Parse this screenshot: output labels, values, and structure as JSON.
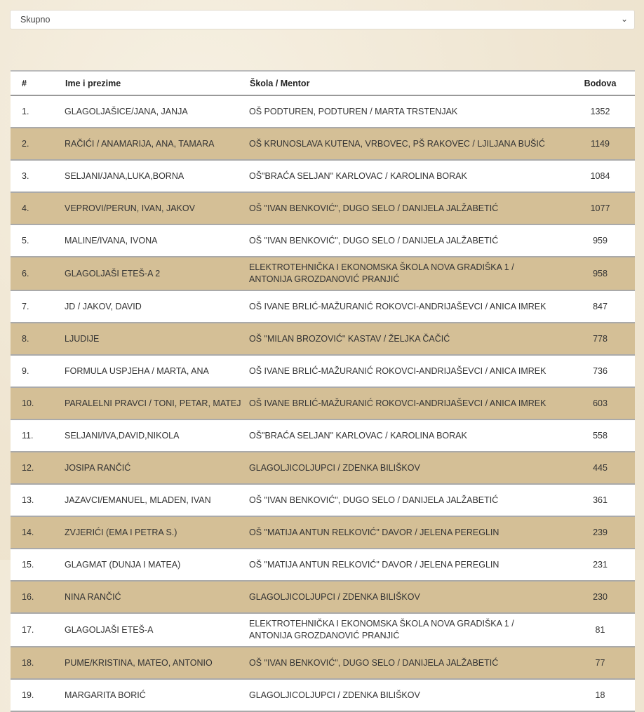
{
  "filter": {
    "selected": "Skupno",
    "icon": "chevron-down-icon"
  },
  "table": {
    "headers": [
      "#",
      "Ime i prezime",
      "Škola / Mentor",
      "Bodova"
    ],
    "rows": [
      {
        "rank": "1.",
        "name": "GLAGOLJAŠICE/JANA, JANJA",
        "school": "OŠ PODTUREN, PODTUREN / MARTA TRSTENJAK",
        "points": "1352"
      },
      {
        "rank": "2.",
        "name": "RAČIĆI / ANAMARIJA, ANA, TAMARA",
        "school": "OŠ KRUNOSLAVA KUTENA, VRBOVEC, PŠ RAKOVEC / LJILJANA BUŠIĆ",
        "points": "1149"
      },
      {
        "rank": "3.",
        "name": "SELJANI/JANA,LUKA,BORNA",
        "school": "OŠ\"BRAĆA SELJAN\" KARLOVAC / KAROLINA BORAK",
        "points": "1084"
      },
      {
        "rank": "4.",
        "name": "VEPROVI/PERUN, IVAN, JAKOV",
        "school": "OŠ \"IVAN BENKOVIĆ\", DUGO SELO / DANIJELA JALŽABETIĆ",
        "points": "1077"
      },
      {
        "rank": "5.",
        "name": "MALINE/IVANA, IVONA",
        "school": "OŠ \"IVAN BENKOVIĆ\", DUGO SELO / DANIJELA JALŽABETIĆ",
        "points": "959"
      },
      {
        "rank": "6.",
        "name": "GLAGOLJAŠI ETEŠ-A 2",
        "school": "ELEKTROTEHNIČKA I EKONOMSKA ŠKOLA NOVA GRADIŠKA 1 / ANTONIJA GROZDANOVIĆ PRANJIĆ",
        "points": "958"
      },
      {
        "rank": "7.",
        "name": "JD / JAKOV, DAVID",
        "school": "OŠ IVANE BRLIĆ-MAŽURANIĆ ROKOVCI-ANDRIJAŠEVCI / ANICA IMREK",
        "points": "847"
      },
      {
        "rank": "8.",
        "name": "LJUDIJE",
        "school": "OŠ \"MILAN BROZOVIĆ\" KASTAV / ŽELJKA ČAČIĆ",
        "points": "778"
      },
      {
        "rank": "9.",
        "name": "FORMULA USPJEHA / MARTA, ANA",
        "school": "OŠ IVANE BRLIĆ-MAŽURANIĆ ROKOVCI-ANDRIJAŠEVCI / ANICA IMREK",
        "points": "736"
      },
      {
        "rank": "10.",
        "name": "PARALELNI PRAVCI / TONI, PETAR, MATEJ",
        "school": "OŠ IVANE BRLIĆ-MAŽURANIĆ ROKOVCI-ANDRIJAŠEVCI / ANICA IMREK",
        "points": "603"
      },
      {
        "rank": "11.",
        "name": "SELJANI/IVA,DAVID,NIKOLA",
        "school": "OŠ\"BRAĆA SELJAN\" KARLOVAC / KAROLINA BORAK",
        "points": "558"
      },
      {
        "rank": "12.",
        "name": "JOSIPA RANČIĆ",
        "school": "GLAGOLJICOLJUPCI / ZDENKA BILIŠKOV",
        "points": "445"
      },
      {
        "rank": "13.",
        "name": "JAZAVCI/EMANUEL, MLADEN, IVAN",
        "school": "OŠ \"IVAN BENKOVIĆ\", DUGO SELO / DANIJELA JALŽABETIĆ",
        "points": "361"
      },
      {
        "rank": "14.",
        "name": "ZVJERIĆI (EMA I PETRA S.)",
        "school": "OŠ \"MATIJA ANTUN RELKOVIĆ\" DAVOR / JELENA PEREGLIN",
        "points": "239"
      },
      {
        "rank": "15.",
        "name": "GLAGMAT (DUNJA I MATEA)",
        "school": "OŠ \"MATIJA ANTUN RELKOVIĆ\" DAVOR / JELENA PEREGLIN",
        "points": "231"
      },
      {
        "rank": "16.",
        "name": "NINA RANČIĆ",
        "school": "GLAGOLJICOLJUPCI / ZDENKA BILIŠKOV",
        "points": "230"
      },
      {
        "rank": "17.",
        "name": "GLAGOLJAŠI ETEŠ-A",
        "school": "ELEKTROTEHNIČKA I EKONOMSKA ŠKOLA NOVA GRADIŠKA 1 / ANTONIJA GROZDANOVIĆ PRANJIĆ",
        "points": "81"
      },
      {
        "rank": "18.",
        "name": "PUME/KRISTINA, MATEO, ANTONIO",
        "school": "OŠ \"IVAN BENKOVIĆ\", DUGO SELO / DANIJELA JALŽABETIĆ",
        "points": "77"
      },
      {
        "rank": "19.",
        "name": "MARGARITA BORIĆ",
        "school": "GLAGOLJICOLJUPCI / ZDENKA BILIŠKOV",
        "points": "18"
      }
    ]
  },
  "colors": {
    "stripe": "#d4bf96",
    "background": "#f1e9d8"
  }
}
